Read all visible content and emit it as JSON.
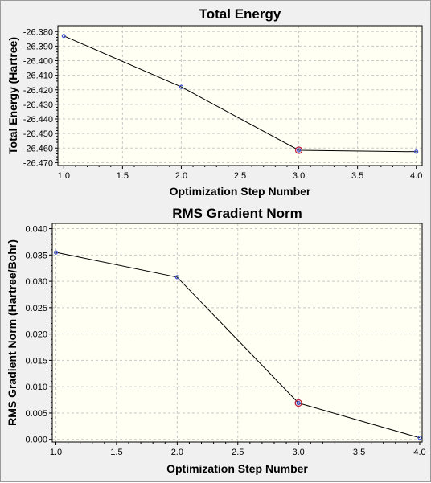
{
  "charts": [
    {
      "type": "line",
      "title": "Total Energy",
      "xlabel": "Optimization Step Number",
      "ylabel": "Total Energy (Hartree)",
      "x": [
        1,
        2,
        3,
        4
      ],
      "series": [
        {
          "values": [
            -26.383,
            -26.418,
            -26.4615,
            -26.4625
          ]
        }
      ],
      "highlight_x": 3,
      "xlim": [
        0.95,
        4.05
      ],
      "ylim": [
        -26.472,
        -26.376
      ],
      "xticks": [
        "1.0",
        "1.5",
        "2.0",
        "2.5",
        "3.0",
        "3.5",
        "4.0"
      ],
      "yticks": [
        "-26.380",
        "-26.390",
        "-26.400",
        "-26.410",
        "-26.420",
        "-26.430",
        "-26.440",
        "-26.450",
        "-26.460",
        "-26.470"
      ],
      "grid": true,
      "colors": {
        "line": "#000000",
        "point": "#3b4fd0",
        "highlight": "#c02040",
        "plot_bg": "#fffff4",
        "grid": "#c8c8c8"
      }
    },
    {
      "type": "line",
      "title": "RMS Gradient Norm",
      "xlabel": "Optimization Step Number",
      "ylabel": "RMS Gradient Norm (Hartree/Bohr)",
      "x": [
        1,
        2,
        3,
        4
      ],
      "series": [
        {
          "values": [
            0.0355,
            0.0308,
            0.0069,
            0.0003
          ]
        }
      ],
      "highlight_x": 3,
      "xlim": [
        0.97,
        4.02
      ],
      "ylim": [
        -0.0005,
        0.041
      ],
      "xticks": [
        "1.0",
        "1.5",
        "2.0",
        "2.5",
        "3.0",
        "3.5",
        "4.0"
      ],
      "yticks": [
        "0.040",
        "0.035",
        "0.030",
        "0.025",
        "0.020",
        "0.015",
        "0.010",
        "0.005",
        "0.000"
      ],
      "grid": true,
      "colors": {
        "line": "#000000",
        "point": "#3b4fd0",
        "highlight": "#c02040",
        "plot_bg": "#fffff4",
        "grid": "#c8c8c8"
      }
    }
  ]
}
